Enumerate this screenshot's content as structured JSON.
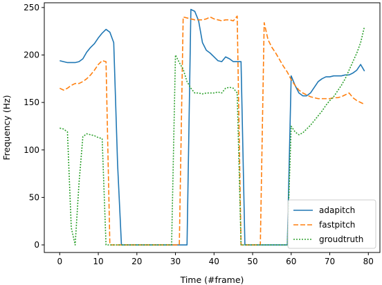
{
  "chart_data": {
    "type": "line",
    "title": "",
    "xlabel": "Time (#frame)",
    "ylabel": "Frequency (Hz)",
    "xlim": [
      -4.0,
      83.0
    ],
    "ylim": [
      -8,
      255
    ],
    "xticks": [
      0,
      10,
      20,
      30,
      40,
      50,
      60,
      70,
      80
    ],
    "yticks": [
      0,
      50,
      100,
      150,
      200,
      250
    ],
    "grid": false,
    "legend_position": "lower-right",
    "series": [
      {
        "name": "adapitch",
        "color": "#1f77b4",
        "style": "solid",
        "points": [
          [
            0,
            194
          ],
          [
            1,
            193
          ],
          [
            2,
            192
          ],
          [
            3,
            192
          ],
          [
            4,
            192
          ],
          [
            5,
            193
          ],
          [
            6,
            196
          ],
          [
            7,
            203
          ],
          [
            8,
            208
          ],
          [
            9,
            212
          ],
          [
            10,
            218
          ],
          [
            11,
            223
          ],
          [
            12,
            227
          ],
          [
            13,
            224
          ],
          [
            14,
            213
          ],
          [
            15,
            85
          ],
          [
            16,
            0
          ],
          [
            17,
            0
          ],
          [
            18,
            0
          ],
          [
            19,
            0
          ],
          [
            20,
            0
          ],
          [
            21,
            0
          ],
          [
            22,
            0
          ],
          [
            23,
            0
          ],
          [
            24,
            0
          ],
          [
            25,
            0
          ],
          [
            26,
            0
          ],
          [
            27,
            0
          ],
          [
            28,
            0
          ],
          [
            29,
            0
          ],
          [
            30,
            0
          ],
          [
            31,
            0
          ],
          [
            32,
            0
          ],
          [
            33,
            0
          ],
          [
            34,
            248
          ],
          [
            35,
            246
          ],
          [
            36,
            236
          ],
          [
            37,
            213
          ],
          [
            38,
            205
          ],
          [
            39,
            202
          ],
          [
            40,
            198
          ],
          [
            41,
            194
          ],
          [
            42,
            193
          ],
          [
            43,
            198
          ],
          [
            44,
            196
          ],
          [
            45,
            193
          ],
          [
            46,
            193
          ],
          [
            47,
            193
          ],
          [
            48,
            0
          ],
          [
            49,
            0
          ],
          [
            50,
            0
          ],
          [
            51,
            0
          ],
          [
            52,
            0
          ],
          [
            53,
            0
          ],
          [
            54,
            0
          ],
          [
            55,
            0
          ],
          [
            56,
            0
          ],
          [
            57,
            0
          ],
          [
            58,
            0
          ],
          [
            59,
            0
          ],
          [
            60,
            178
          ],
          [
            61,
            168
          ],
          [
            62,
            160
          ],
          [
            63,
            157
          ],
          [
            64,
            157
          ],
          [
            65,
            160
          ],
          [
            66,
            166
          ],
          [
            67,
            172
          ],
          [
            68,
            175
          ],
          [
            69,
            177
          ],
          [
            70,
            177
          ],
          [
            71,
            178
          ],
          [
            72,
            178
          ],
          [
            73,
            178
          ],
          [
            74,
            179
          ],
          [
            75,
            179
          ],
          [
            76,
            181
          ],
          [
            77,
            184
          ],
          [
            78,
            190
          ],
          [
            79,
            183
          ]
        ]
      },
      {
        "name": "fastpitch",
        "color": "#ff7f0e",
        "style": "dashed",
        "points": [
          [
            0,
            165
          ],
          [
            1,
            163
          ],
          [
            2,
            165
          ],
          [
            3,
            168
          ],
          [
            4,
            170
          ],
          [
            5,
            170
          ],
          [
            6,
            172
          ],
          [
            7,
            175
          ],
          [
            8,
            179
          ],
          [
            9,
            184
          ],
          [
            10,
            190
          ],
          [
            11,
            194
          ],
          [
            12,
            193
          ],
          [
            13,
            0
          ],
          [
            14,
            0
          ],
          [
            15,
            0
          ],
          [
            16,
            0
          ],
          [
            17,
            0
          ],
          [
            18,
            0
          ],
          [
            19,
            0
          ],
          [
            20,
            0
          ],
          [
            21,
            0
          ],
          [
            22,
            0
          ],
          [
            23,
            0
          ],
          [
            24,
            0
          ],
          [
            25,
            0
          ],
          [
            26,
            0
          ],
          [
            27,
            0
          ],
          [
            28,
            0
          ],
          [
            29,
            0
          ],
          [
            30,
            0
          ],
          [
            31,
            0
          ],
          [
            32,
            240
          ],
          [
            33,
            239
          ],
          [
            34,
            238
          ],
          [
            35,
            237
          ],
          [
            36,
            237
          ],
          [
            37,
            237
          ],
          [
            38,
            238
          ],
          [
            39,
            240
          ],
          [
            40,
            238
          ],
          [
            41,
            237
          ],
          [
            42,
            236
          ],
          [
            43,
            237
          ],
          [
            44,
            237
          ],
          [
            45,
            236
          ],
          [
            46,
            241
          ],
          [
            47,
            0
          ],
          [
            48,
            0
          ],
          [
            49,
            0
          ],
          [
            50,
            0
          ],
          [
            51,
            0
          ],
          [
            52,
            0
          ],
          [
            53,
            234
          ],
          [
            54,
            216
          ],
          [
            55,
            208
          ],
          [
            56,
            202
          ],
          [
            57,
            195
          ],
          [
            58,
            188
          ],
          [
            59,
            182
          ],
          [
            60,
            174
          ],
          [
            61,
            168
          ],
          [
            62,
            163
          ],
          [
            63,
            160
          ],
          [
            64,
            158
          ],
          [
            65,
            156
          ],
          [
            66,
            155
          ],
          [
            67,
            154
          ],
          [
            68,
            154
          ],
          [
            69,
            154
          ],
          [
            70,
            154
          ],
          [
            71,
            155
          ],
          [
            72,
            155
          ],
          [
            73,
            156
          ],
          [
            74,
            158
          ],
          [
            75,
            160
          ],
          [
            76,
            155
          ],
          [
            77,
            152
          ],
          [
            78,
            150
          ],
          [
            79,
            148
          ]
        ]
      },
      {
        "name": "groudtruth",
        "color": "#2ca02c",
        "style": "dotted",
        "points": [
          [
            0,
            123
          ],
          [
            1,
            122
          ],
          [
            2,
            119
          ],
          [
            3,
            18
          ],
          [
            4,
            0
          ],
          [
            5,
            65
          ],
          [
            6,
            114
          ],
          [
            7,
            117
          ],
          [
            8,
            116
          ],
          [
            9,
            115
          ],
          [
            10,
            113
          ],
          [
            11,
            112
          ],
          [
            12,
            0
          ],
          [
            13,
            0
          ],
          [
            14,
            0
          ],
          [
            15,
            0
          ],
          [
            16,
            0
          ],
          [
            17,
            0
          ],
          [
            18,
            0
          ],
          [
            19,
            0
          ],
          [
            20,
            0
          ],
          [
            21,
            0
          ],
          [
            22,
            0
          ],
          [
            23,
            0
          ],
          [
            24,
            0
          ],
          [
            25,
            0
          ],
          [
            26,
            0
          ],
          [
            27,
            0
          ],
          [
            28,
            0
          ],
          [
            29,
            0
          ],
          [
            30,
            200
          ],
          [
            31,
            192
          ],
          [
            32,
            185
          ],
          [
            33,
            172
          ],
          [
            34,
            165
          ],
          [
            35,
            160
          ],
          [
            36,
            160
          ],
          [
            37,
            159
          ],
          [
            38,
            160
          ],
          [
            39,
            160
          ],
          [
            40,
            160
          ],
          [
            41,
            161
          ],
          [
            42,
            160
          ],
          [
            43,
            165
          ],
          [
            44,
            166
          ],
          [
            45,
            165
          ],
          [
            46,
            160
          ],
          [
            47,
            0
          ],
          [
            48,
            0
          ],
          [
            49,
            0
          ],
          [
            50,
            0
          ],
          [
            51,
            0
          ],
          [
            52,
            0
          ],
          [
            53,
            0
          ],
          [
            54,
            0
          ],
          [
            55,
            0
          ],
          [
            56,
            0
          ],
          [
            57,
            0
          ],
          [
            58,
            0
          ],
          [
            59,
            0
          ],
          [
            60,
            125
          ],
          [
            61,
            119
          ],
          [
            62,
            116
          ],
          [
            63,
            118
          ],
          [
            64,
            122
          ],
          [
            65,
            126
          ],
          [
            66,
            131
          ],
          [
            67,
            136
          ],
          [
            68,
            141
          ],
          [
            69,
            147
          ],
          [
            70,
            152
          ],
          [
            71,
            156
          ],
          [
            72,
            162
          ],
          [
            73,
            168
          ],
          [
            74,
            175
          ],
          [
            75,
            184
          ],
          [
            76,
            193
          ],
          [
            77,
            202
          ],
          [
            78,
            213
          ],
          [
            79,
            230
          ]
        ]
      }
    ]
  }
}
